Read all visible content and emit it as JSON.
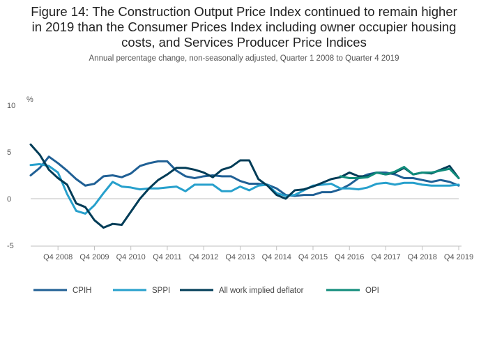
{
  "title": "Figure 14: The Construction Output Price Index continued to remain higher in 2019 than the Consumer Prices Index including owner occupier housing costs, and Services Producer Price Indices",
  "title_lines": [
    "Figure 14: The Construction Output Price Index continued to remain higher",
    "in 2019 than the Consumer Prices Index including owner occupier housing",
    "costs, and Services Producer Price Indices"
  ],
  "subtitle": "Annual percentage change, non-seasonally adjusted, Quarter 1 2008 to Quarter 4 2019",
  "chart_data": {
    "type": "line",
    "title": "Figure 14: The Construction Output Price Index continued to remain higher in 2019 than the Consumer Prices Index including owner occupier housing costs, and Services Producer Price Indices",
    "subtitle": "Annual percentage change, non-seasonally adjusted, Quarter 1 2008 to Quarter 4 2019",
    "ylabel": "%",
    "xlabel": "",
    "ylim": [
      -5,
      10
    ],
    "yticks": [
      10,
      5,
      0,
      -5
    ],
    "grid": false,
    "legend_position": "bottom",
    "categories": [
      "Q1 2008",
      "Q2 2008",
      "Q3 2008",
      "Q4 2008",
      "Q1 2009",
      "Q2 2009",
      "Q3 2009",
      "Q4 2009",
      "Q1 2010",
      "Q2 2010",
      "Q3 2010",
      "Q4 2010",
      "Q1 2011",
      "Q2 2011",
      "Q3 2011",
      "Q4 2011",
      "Q1 2012",
      "Q2 2012",
      "Q3 2012",
      "Q4 2012",
      "Q1 2013",
      "Q2 2013",
      "Q3 2013",
      "Q4 2013",
      "Q1 2014",
      "Q2 2014",
      "Q3 2014",
      "Q4 2014",
      "Q1 2015",
      "Q2 2015",
      "Q3 2015",
      "Q4 2015",
      "Q1 2016",
      "Q2 2016",
      "Q3 2016",
      "Q4 2016",
      "Q1 2017",
      "Q2 2017",
      "Q3 2017",
      "Q4 2017",
      "Q1 2018",
      "Q2 2018",
      "Q3 2018",
      "Q4 2018",
      "Q1 2019",
      "Q2 2019",
      "Q3 2019",
      "Q4 2019"
    ],
    "xtick_labels": [
      "Q4 2008",
      "Q4 2009",
      "Q4 2010",
      "Q4 2011",
      "Q4 2012",
      "Q4 2013",
      "Q4 2014",
      "Q4 2015",
      "Q4 2016",
      "Q4 2017",
      "Q4 2018",
      "Q4 2019"
    ],
    "series": [
      {
        "name": "CPIH",
        "color": "#206095",
        "values": [
          2.5,
          3.3,
          4.5,
          3.8,
          3.0,
          2.1,
          1.4,
          1.6,
          2.4,
          2.5,
          2.3,
          2.7,
          3.5,
          3.8,
          4.0,
          4.0,
          3.0,
          2.4,
          2.2,
          2.4,
          2.5,
          2.4,
          2.4,
          1.9,
          1.6,
          1.6,
          1.5,
          1.1,
          0.4,
          0.3,
          0.4,
          0.4,
          0.7,
          0.7,
          1.0,
          1.5,
          2.2,
          2.6,
          2.8,
          2.8,
          2.6,
          2.2,
          2.2,
          2.0,
          1.8,
          2.0,
          1.8,
          1.4
        ]
      },
      {
        "name": "SPPI",
        "color": "#27a0cc",
        "values": [
          3.6,
          3.7,
          3.5,
          2.8,
          0.5,
          -1.3,
          -1.6,
          -0.7,
          0.6,
          1.8,
          1.3,
          1.2,
          1.0,
          1.1,
          1.1,
          1.2,
          1.3,
          0.8,
          1.5,
          1.5,
          1.5,
          0.8,
          0.8,
          1.3,
          0.9,
          1.4,
          1.5,
          0.6,
          0.3,
          0.4,
          0.9,
          1.4,
          1.5,
          1.6,
          1.1,
          1.1,
          1.0,
          1.2,
          1.6,
          1.7,
          1.5,
          1.7,
          1.7,
          1.5,
          1.4,
          1.4,
          1.4,
          1.5
        ]
      },
      {
        "name": "All work implied deflator",
        "color": "#003c57",
        "values": [
          5.8,
          4.7,
          3.1,
          2.2,
          1.5,
          -0.5,
          -0.9,
          -2.3,
          -3.1,
          -2.7,
          -2.8,
          -1.4,
          0.0,
          1.1,
          2.0,
          2.6,
          3.3,
          3.3,
          3.1,
          2.8,
          2.3,
          3.1,
          3.4,
          4.1,
          4.1,
          2.1,
          1.4,
          0.4,
          0.0,
          0.9,
          1.0,
          1.3,
          1.7,
          2.1,
          2.3,
          2.8,
          2.4,
          2.4,
          2.8,
          2.6,
          2.8,
          3.3,
          2.6,
          2.8,
          2.7,
          3.1,
          3.5,
          2.2
        ]
      },
      {
        "name": "OPI",
        "color": "#118c7b",
        "values": [
          null,
          null,
          null,
          null,
          null,
          null,
          null,
          null,
          null,
          null,
          null,
          null,
          null,
          null,
          null,
          null,
          null,
          null,
          null,
          null,
          null,
          null,
          null,
          null,
          null,
          null,
          null,
          null,
          null,
          null,
          null,
          null,
          null,
          null,
          2.4,
          2.2,
          2.2,
          2.3,
          2.8,
          2.6,
          2.9,
          3.4,
          2.6,
          2.8,
          2.8,
          3.0,
          3.2,
          2.2
        ]
      }
    ]
  }
}
